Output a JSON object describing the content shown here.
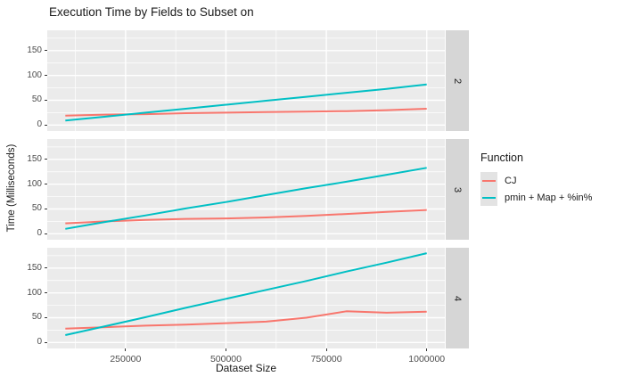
{
  "title": "Execution Time by Fields to Subset on",
  "y_axis": {
    "label": "Time (Milliseconds)"
  },
  "x_axis": {
    "label": "Dataset Size"
  },
  "legend": {
    "title": "Function",
    "items": [
      {
        "label": "CJ",
        "color": "#F8766D"
      },
      {
        "label": "pmin + Map + %in%",
        "color": "#00BFC4"
      }
    ]
  },
  "colors": {
    "panel_bg": "#EBEBEB",
    "strip_bg": "#D6D6D6",
    "grid": "#FFFFFF",
    "series_cj": "#F8766D",
    "series_pmin": "#00BFC4"
  },
  "chart_data": {
    "type": "line",
    "title": "Execution Time by Fields to Subset on",
    "xlabel": "Dataset Size",
    "ylabel": "Time (Milliseconds)",
    "facet_labels": [
      "2",
      "3",
      "4"
    ],
    "x": [
      100000,
      200000,
      300000,
      400000,
      500000,
      600000,
      700000,
      800000,
      900000,
      1000000
    ],
    "x_ticks": [
      250000,
      500000,
      750000,
      1000000
    ],
    "x_minor_ticks": [
      125000,
      375000,
      625000,
      875000
    ],
    "y_ticks": [
      0,
      50,
      100,
      150
    ],
    "y_minor_ticks": [
      25,
      75,
      125,
      175
    ],
    "xlim": [
      55000,
      1045000
    ],
    "ylim": [
      -12,
      191
    ],
    "grid": true,
    "legend_title": "Function",
    "legend_position": "right",
    "facets": [
      {
        "label": "2",
        "series": [
          {
            "name": "CJ",
            "color": "#F8766D",
            "values": [
              19,
              21,
              22,
              24,
              25,
              26,
              27,
              28,
              30,
              33
            ]
          },
          {
            "name": "pmin + Map + %in%",
            "color": "#00BFC4",
            "values": [
              9,
              17,
              25,
              33,
              41,
              49,
              57,
              65,
              73,
              82
            ]
          }
        ]
      },
      {
        "label": "3",
        "series": [
          {
            "name": "CJ",
            "color": "#F8766D",
            "values": [
              21,
              25,
              28,
              30,
              31,
              33,
              36,
              40,
              44,
              48
            ]
          },
          {
            "name": "pmin + Map + %in%",
            "color": "#00BFC4",
            "values": [
              10,
              24,
              37,
              51,
              64,
              78,
              92,
              105,
              119,
              133
            ]
          }
        ]
      },
      {
        "label": "4",
        "series": [
          {
            "name": "CJ",
            "color": "#F8766D",
            "values": [
              28,
              31,
              34,
              36,
              39,
              42,
              50,
              63,
              60,
              62
            ]
          },
          {
            "name": "pmin + Map + %in%",
            "color": "#00BFC4",
            "values": [
              15,
              33,
              51,
              70,
              88,
              106,
              124,
              143,
              161,
              180
            ]
          }
        ]
      }
    ]
  }
}
